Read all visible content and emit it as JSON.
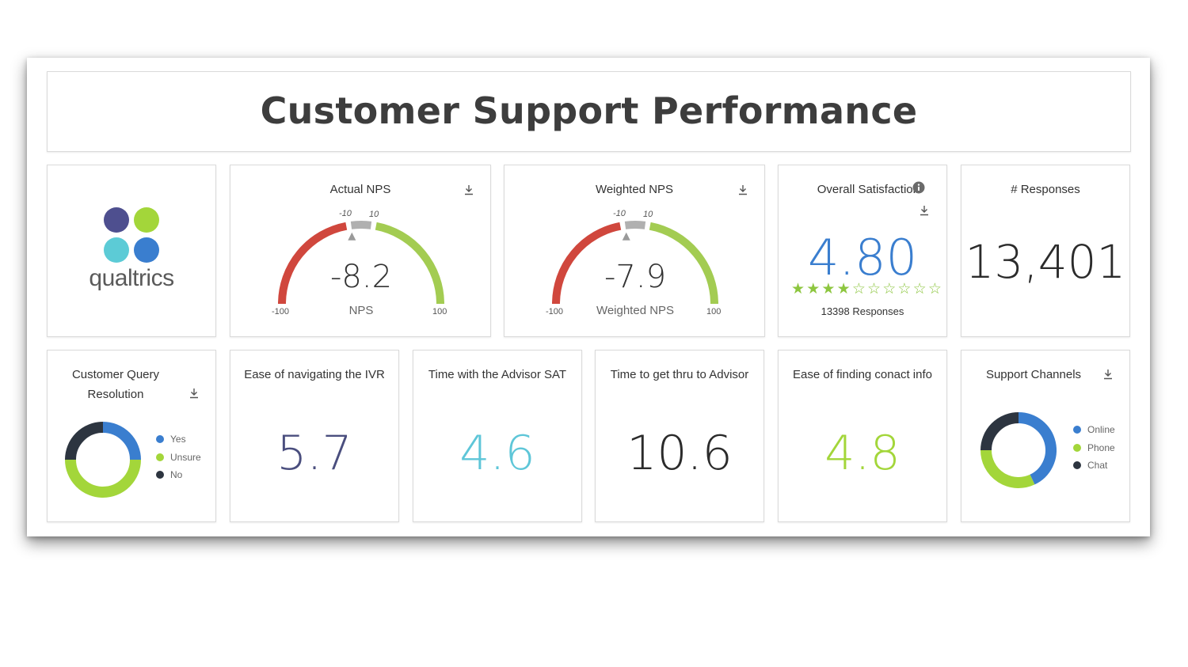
{
  "dashboard": {
    "title": "Customer Support Performance"
  },
  "logo": {
    "text": "qualtrics",
    "dot_colors": [
      "#4e4f8f",
      "#a3d63a",
      "#5ccbd6",
      "#3a7ecf"
    ]
  },
  "actual_nps": {
    "title": "Actual NPS",
    "value": "-8.2",
    "label": "NPS",
    "min": "-100",
    "max": "100",
    "band_low": "-10",
    "band_high": "10",
    "fraction": 0.459
  },
  "weighted_nps": {
    "title": "Weighted NPS",
    "value": "-7.9",
    "label": "Weighted NPS",
    "min": "-100",
    "max": "100",
    "band_low": "-10",
    "band_high": "10",
    "fraction": 0.4605
  },
  "overall_satisfaction": {
    "title": "Overall Satisfaction",
    "value": "4.80",
    "rating": 4.8,
    "stars_total": 10,
    "responses": "13398 Responses"
  },
  "responses": {
    "title": "# Responses",
    "value": "13,401"
  },
  "query_resolution": {
    "title": "Customer Query Resolution",
    "legend": [
      {
        "label": "Yes",
        "color": "#3a7ecf"
      },
      {
        "label": "Unsure",
        "color": "#a3d63a"
      },
      {
        "label": "No",
        "color": "#2d3540"
      }
    ],
    "shares": [
      0.25,
      0.5,
      0.25
    ]
  },
  "ivr": {
    "title": "Ease of navigating the IVR",
    "value": "5.7",
    "color": "#4a4e7e"
  },
  "advisor_sat": {
    "title": "Time with the Advisor SAT",
    "value": "4.6",
    "color": "#5ec6d8"
  },
  "thru_advisor": {
    "title": "Time to get thru to Advisor",
    "value": "10.6",
    "color": "#2b2b2b"
  },
  "contact_info": {
    "title": "Ease of finding conact info",
    "value": "4.8",
    "color": "#a3d63a"
  },
  "support_channels": {
    "title": "Support Channels",
    "legend": [
      {
        "label": "Online",
        "color": "#3a7ecf"
      },
      {
        "label": "Phone",
        "color": "#a3d63a"
      },
      {
        "label": "Chat",
        "color": "#2d3540"
      }
    ],
    "shares": [
      0.43,
      0.32,
      0.25
    ]
  },
  "colors": {
    "red": "#d0473d",
    "green": "#a3cc52",
    "grey": "#b0b0b0",
    "blue": "#3a7ecf",
    "star": "#8dc63f"
  }
}
